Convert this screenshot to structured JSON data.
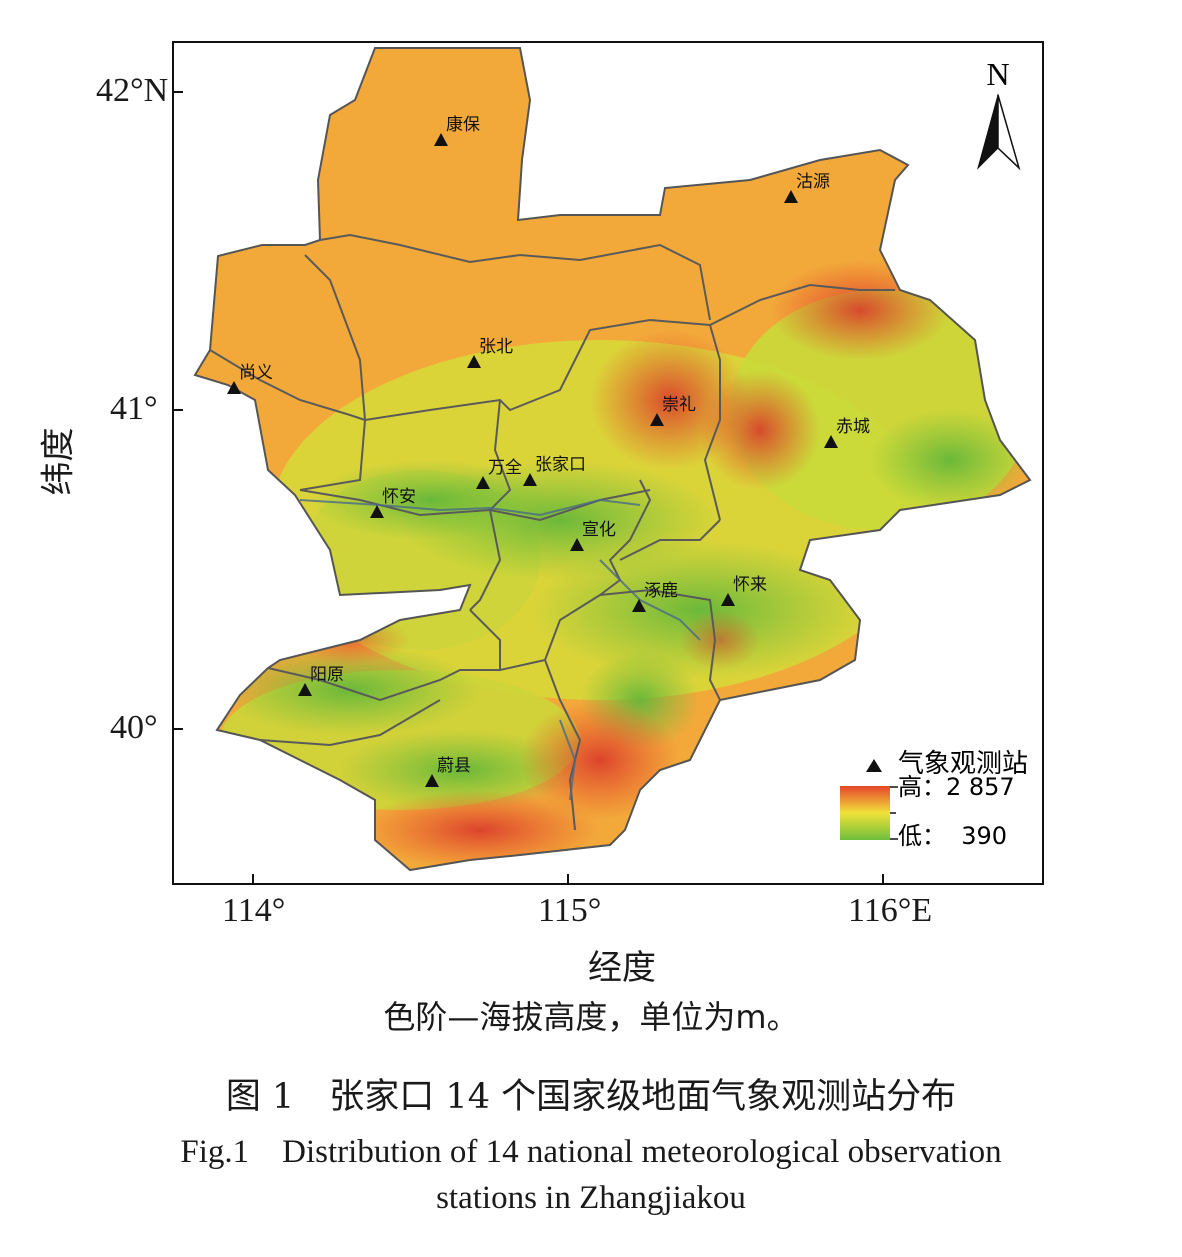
{
  "map": {
    "north_label": "N",
    "lat_ticks": [
      "42°N",
      "41°",
      "40°"
    ],
    "lon_ticks": [
      "114°",
      "115°",
      "116°E"
    ],
    "x_axis_title": "经度",
    "y_axis_title": "纬度",
    "legend": {
      "station_label": "气象观测站",
      "high_label": "高：2 857",
      "low_label": "低：  390",
      "high_value": 2857,
      "low_value": 390,
      "color_high": "#e8452c",
      "color_mid": "#f0e23a",
      "color_low": "#6fbf3b"
    },
    "stations": [
      {
        "name": "康保"
      },
      {
        "name": "沽源"
      },
      {
        "name": "张北"
      },
      {
        "name": "尚义"
      },
      {
        "name": "崇礼"
      },
      {
        "name": "赤城"
      },
      {
        "name": "万全"
      },
      {
        "name": "张家口"
      },
      {
        "name": "怀安"
      },
      {
        "name": "宣化"
      },
      {
        "name": "涿鹿"
      },
      {
        "name": "怀来"
      },
      {
        "name": "阳原"
      },
      {
        "name": "蔚县"
      }
    ]
  },
  "captions": {
    "note": "色阶—海拔高度，单位为m。",
    "title_cn": "图 1　张家口 14 个国家级地面气象观测站分布",
    "title_en_line1": "Fig.1　Distribution of 14 national meteorological observation",
    "title_en_line2": "stations in Zhangjiakou"
  }
}
